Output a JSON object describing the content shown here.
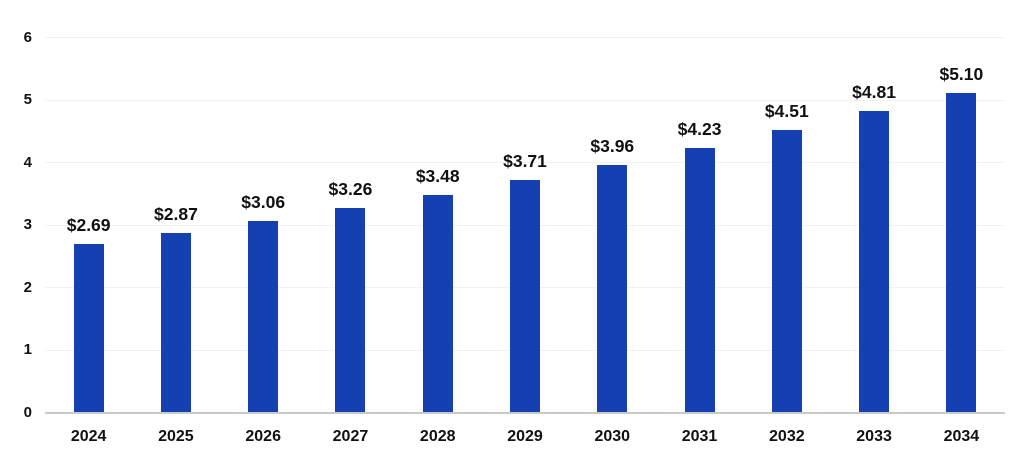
{
  "chart_data": {
    "type": "bar",
    "title": "",
    "subtitle": "",
    "xlabel": "",
    "ylabel": "",
    "categories": [
      "2024",
      "2025",
      "2026",
      "2027",
      "2028",
      "2029",
      "2030",
      "2031",
      "2032",
      "2033",
      "2034"
    ],
    "values": [
      2.69,
      2.87,
      3.06,
      3.26,
      3.48,
      3.71,
      3.96,
      4.23,
      4.51,
      4.81,
      5.1
    ],
    "value_labels": [
      "$2.69",
      "$2.87",
      "$3.06",
      "$3.26",
      "$3.48",
      "$3.71",
      "$3.96",
      "$4.23",
      "$4.51",
      "$4.81",
      "$5.10"
    ],
    "ylim": [
      0,
      6
    ],
    "yticks": [
      0,
      1,
      2,
      3,
      4,
      5,
      6
    ],
    "ytick_labels": [
      "0",
      "1",
      "2",
      "3",
      "4",
      "5",
      "6"
    ],
    "grid": true,
    "legend": "none",
    "colors": {
      "bar": "#1540b2",
      "text": "#111111",
      "gridline": "#f2f2f2",
      "axis_line": "#c9c9c9",
      "background": "#ffffff"
    }
  }
}
